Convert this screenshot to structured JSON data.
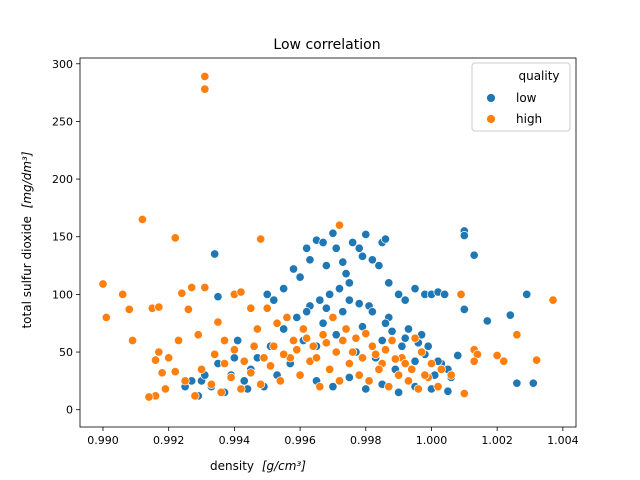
{
  "chart_data": {
    "type": "scatter",
    "title": "Low correlation",
    "xlabel_main": "density",
    "xlabel_unit": "[g/cm³]",
    "ylabel_main": "total sulfur dioxide",
    "ylabel_unit": "[mg/dm³]",
    "xlim": [
      0.9893,
      1.0044
    ],
    "ylim": [
      -15,
      305
    ],
    "xticks": [
      0.99,
      0.992,
      0.994,
      0.996,
      0.998,
      1.0,
      1.002,
      1.004
    ],
    "xtick_labels": [
      "0.990",
      "0.992",
      "0.994",
      "0.996",
      "0.998",
      "1.000",
      "1.002",
      "1.004"
    ],
    "yticks": [
      0,
      50,
      100,
      150,
      200,
      250,
      300
    ],
    "ytick_labels": [
      "0",
      "50",
      "100",
      "150",
      "200",
      "250",
      "300"
    ],
    "grid": false,
    "legend": {
      "title": "quality",
      "placement": "top-right"
    },
    "series": [
      {
        "name": "low",
        "color": "#1f77b4",
        "points": [
          [
            0.9934,
            135
          ],
          [
            0.9935,
            98
          ],
          [
            0.993,
            25
          ],
          [
            0.994,
            45
          ],
          [
            0.9944,
            18
          ],
          [
            0.9952,
            95
          ],
          [
            0.995,
            100
          ],
          [
            0.9955,
            105
          ],
          [
            0.9958,
            122
          ],
          [
            0.996,
            115
          ],
          [
            0.9962,
            140
          ],
          [
            0.9963,
            130
          ],
          [
            0.9965,
            147
          ],
          [
            0.9967,
            145
          ],
          [
            0.9968,
            125
          ],
          [
            0.997,
            153
          ],
          [
            0.9971,
            140
          ],
          [
            0.9973,
            128
          ],
          [
            0.9974,
            118
          ],
          [
            0.9976,
            145
          ],
          [
            0.9978,
            140
          ],
          [
            0.9979,
            133
          ],
          [
            0.998,
            152
          ],
          [
            0.9982,
            130
          ],
          [
            0.9984,
            125
          ],
          [
            0.9985,
            145
          ],
          [
            0.9986,
            148
          ],
          [
            0.9987,
            110
          ],
          [
            0.999,
            100
          ],
          [
            0.9992,
            95
          ],
          [
            0.9995,
            105
          ],
          [
            0.9998,
            100
          ],
          [
            1.0,
            100
          ],
          [
            1.0002,
            102
          ],
          [
            1.0004,
            100
          ],
          [
            1.001,
            155
          ],
          [
            1.001,
            151
          ],
          [
            1.0013,
            134
          ],
          [
            1.0017,
            77
          ],
          [
            1.0024,
            82
          ],
          [
            1.0029,
            100
          ],
          [
            1.0026,
            23
          ],
          [
            1.0031,
            23
          ],
          [
            1.001,
            87
          ],
          [
            1.0008,
            47
          ],
          [
            1.0005,
            35
          ],
          [
            1.0003,
            40
          ],
          [
            1.0001,
            30
          ],
          [
            0.9999,
            55
          ],
          [
            0.9997,
            65
          ],
          [
            0.9995,
            42
          ],
          [
            0.9993,
            70
          ],
          [
            0.9991,
            55
          ],
          [
            0.9989,
            35
          ],
          [
            0.9987,
            80
          ],
          [
            0.9985,
            60
          ],
          [
            0.9983,
            45
          ],
          [
            0.9981,
            90
          ],
          [
            0.9979,
            72
          ],
          [
            0.9977,
            50
          ],
          [
            0.9975,
            95
          ],
          [
            0.9973,
            85
          ],
          [
            0.9971,
            65
          ],
          [
            0.9969,
            100
          ],
          [
            0.9967,
            75
          ],
          [
            0.9965,
            55
          ],
          [
            0.9963,
            90
          ],
          [
            0.9961,
            60
          ],
          [
            0.9959,
            80
          ],
          [
            0.9957,
            40
          ],
          [
            0.9955,
            70
          ],
          [
            0.9953,
            30
          ],
          [
            0.9951,
            55
          ],
          [
            0.9949,
            20
          ],
          [
            0.9947,
            45
          ],
          [
            0.9945,
            35
          ],
          [
            0.9943,
            25
          ],
          [
            0.9941,
            60
          ],
          [
            0.9939,
            30
          ],
          [
            0.9937,
            15
          ],
          [
            0.9935,
            40
          ],
          [
            0.9933,
            20
          ],
          [
            0.9931,
            30
          ],
          [
            0.9929,
            12
          ],
          [
            0.9927,
            25
          ],
          [
            0.9925,
            20
          ],
          [
            0.996,
            30
          ],
          [
            0.9965,
            25
          ],
          [
            0.997,
            20
          ],
          [
            0.9975,
            28
          ],
          [
            0.998,
            18
          ],
          [
            0.9985,
            22
          ],
          [
            0.999,
            15
          ],
          [
            0.9995,
            20
          ],
          [
            1.0,
            18
          ],
          [
            1.0005,
            16
          ],
          [
            0.9962,
            85
          ],
          [
            0.9966,
            95
          ],
          [
            0.9968,
            88
          ],
          [
            0.9972,
            105
          ],
          [
            0.9975,
            110
          ],
          [
            0.9978,
            92
          ],
          [
            0.9982,
            85
          ],
          [
            0.9986,
            75
          ],
          [
            0.9988,
            68
          ],
          [
            0.9992,
            62
          ],
          [
            0.9996,
            58
          ],
          [
            0.9998,
            48
          ],
          [
            1.0002,
            42
          ],
          [
            1.0006,
            28
          ]
        ]
      },
      {
        "name": "high",
        "color": "#ff7f0e",
        "points": [
          [
            0.9931,
            289
          ],
          [
            0.9931,
            278
          ],
          [
            0.9912,
            165
          ],
          [
            0.9922,
            149
          ],
          [
            0.9948,
            148
          ],
          [
            0.9972,
            160
          ],
          [
            0.99,
            109
          ],
          [
            0.9901,
            80
          ],
          [
            0.9906,
            100
          ],
          [
            0.9908,
            87
          ],
          [
            0.9909,
            60
          ],
          [
            0.9915,
            88
          ],
          [
            0.9917,
            89
          ],
          [
            0.9916,
            43
          ],
          [
            0.9917,
            50
          ],
          [
            0.9916,
            12
          ],
          [
            0.9924,
            101
          ],
          [
            0.9927,
            106
          ],
          [
            0.9926,
            87
          ],
          [
            0.9929,
            65
          ],
          [
            0.9931,
            106
          ],
          [
            0.9935,
            76
          ],
          [
            0.9937,
            60
          ],
          [
            0.994,
            100
          ],
          [
            0.9942,
            102
          ],
          [
            0.9945,
            88
          ],
          [
            0.9947,
            70
          ],
          [
            0.995,
            88
          ],
          [
            0.9953,
            75
          ],
          [
            0.9956,
            80
          ],
          [
            0.9958,
            60
          ],
          [
            0.9961,
            70
          ],
          [
            0.9964,
            55
          ],
          [
            0.9967,
            65
          ],
          [
            0.997,
            80
          ],
          [
            0.9973,
            60
          ],
          [
            0.9976,
            50
          ],
          [
            0.9979,
            45
          ],
          [
            0.9982,
            55
          ],
          [
            0.9985,
            40
          ],
          [
            0.9988,
            60
          ],
          [
            0.9991,
            45
          ],
          [
            0.9994,
            35
          ],
          [
            0.9997,
            50
          ],
          [
            1.0,
            40
          ],
          [
            1.0003,
            35
          ],
          [
            1.0006,
            30
          ],
          [
            1.0009,
            100
          ],
          [
            1.001,
            14
          ],
          [
            1.0013,
            52
          ],
          [
            1.0014,
            48
          ],
          [
            1.0013,
            42
          ],
          [
            1.002,
            47
          ],
          [
            1.0022,
            42
          ],
          [
            1.0026,
            65
          ],
          [
            1.0032,
            43
          ],
          [
            1.0037,
            95
          ],
          [
            0.992,
            45
          ],
          [
            0.9922,
            33
          ],
          [
            0.9925,
            25
          ],
          [
            0.9928,
            12
          ],
          [
            0.993,
            35
          ],
          [
            0.9933,
            22
          ],
          [
            0.9936,
            15
          ],
          [
            0.9939,
            28
          ],
          [
            0.9942,
            18
          ],
          [
            0.9945,
            32
          ],
          [
            0.9948,
            22
          ],
          [
            0.9951,
            38
          ],
          [
            0.9954,
            25
          ],
          [
            0.9957,
            45
          ],
          [
            0.996,
            30
          ],
          [
            0.9963,
            42
          ],
          [
            0.9966,
            20
          ],
          [
            0.9969,
            35
          ],
          [
            0.9972,
            25
          ],
          [
            0.9975,
            40
          ],
          [
            0.9978,
            30
          ],
          [
            0.9981,
            25
          ],
          [
            0.9984,
            35
          ],
          [
            0.9987,
            20
          ],
          [
            0.999,
            30
          ],
          [
            0.9993,
            25
          ],
          [
            0.9996,
            18
          ],
          [
            0.9999,
            28
          ],
          [
            1.0002,
            20
          ],
          [
            0.9952,
            55
          ],
          [
            0.9955,
            48
          ],
          [
            0.9959,
            52
          ],
          [
            0.9962,
            62
          ],
          [
            0.9965,
            45
          ],
          [
            0.9968,
            58
          ],
          [
            0.9971,
            50
          ],
          [
            0.9974,
            70
          ],
          [
            0.9977,
            62
          ],
          [
            0.998,
            66
          ],
          [
            0.9983,
            48
          ],
          [
            0.9986,
            52
          ],
          [
            0.9989,
            44
          ],
          [
            0.9992,
            40
          ],
          [
            0.9995,
            62
          ],
          [
            0.9998,
            30
          ],
          [
            0.9934,
            48
          ],
          [
            0.9937,
            40
          ],
          [
            0.994,
            52
          ],
          [
            0.9943,
            42
          ],
          [
            0.9946,
            55
          ],
          [
            0.9949,
            45
          ],
          [
            0.9919,
            18
          ],
          [
            0.9914,
            11
          ],
          [
            0.9923,
            60
          ],
          [
            0.9918,
            32
          ]
        ]
      }
    ]
  }
}
